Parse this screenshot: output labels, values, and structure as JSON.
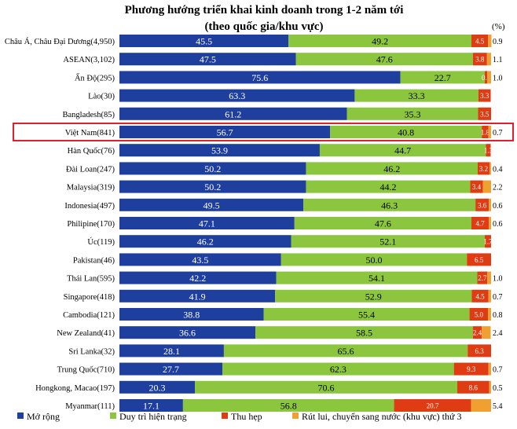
{
  "chart_data": {
    "type": "bar",
    "orientation": "horizontal-stacked-100",
    "title": "Phương hướng triển khai kinh doanh trong 1-2 năm tới",
    "subtitle": "(theo quốc gia/khu vực)",
    "unit_label": "(%)",
    "categories": [
      "Châu Á, Châu Đại Dương(4,950)",
      "ASEAN(3,102)",
      "Ấn Độ(295)",
      "Lào(30)",
      "Bangladesh(85)",
      "Việt Nam(841)",
      "Hàn Quốc(76)",
      "Đài Loan(247)",
      "Malaysia(319)",
      "Indonesia(497)",
      "Philipine(170)",
      "Úc(119)",
      "Pakistan(46)",
      "Thái Lan(595)",
      "Singapore(418)",
      "Cambodia(121)",
      "New Zealand(41)",
      "Sri Lanka(32)",
      "Trung Quốc(710)",
      "Hongkong, Macao(197)",
      "Myanmar(111)"
    ],
    "highlighted_category": "Việt Nam(841)",
    "series": [
      {
        "name": "Mở rộng",
        "color": "#1f3f9e",
        "values": [
          45.5,
          47.5,
          75.6,
          63.3,
          61.2,
          56.7,
          53.9,
          50.2,
          50.2,
          49.5,
          47.1,
          46.2,
          43.5,
          42.2,
          41.9,
          38.8,
          36.6,
          28.1,
          27.7,
          20.3,
          17.1
        ]
      },
      {
        "name": "Duy trì hiện trạng",
        "color": "#8cc63f",
        "values": [
          49.2,
          47.6,
          22.7,
          33.3,
          35.3,
          40.8,
          44.7,
          46.2,
          44.2,
          46.3,
          47.6,
          52.1,
          50.0,
          54.1,
          52.9,
          55.4,
          58.5,
          65.6,
          62.3,
          70.6,
          56.8
        ]
      },
      {
        "name": "Thu hẹp",
        "color": "#e03c14",
        "values": [
          4.5,
          3.8,
          0.7,
          3.3,
          3.5,
          1.8,
          1.3,
          3.2,
          3.4,
          3.6,
          4.7,
          1.7,
          6.5,
          2.7,
          4.5,
          5.0,
          2.4,
          6.3,
          9.3,
          8.6,
          20.7
        ]
      },
      {
        "name": "Rút lui, chuyển sang nước (khu vực) thứ 3",
        "color": "#f0a030",
        "values": [
          0.9,
          1.1,
          1.0,
          0.0,
          0.0,
          0.7,
          0.0,
          0.4,
          2.2,
          0.6,
          0.6,
          0.0,
          0.0,
          1.0,
          0.7,
          0.8,
          2.4,
          0.0,
          0.7,
          0.5,
          5.4
        ]
      }
    ],
    "xlim": [
      0,
      100
    ],
    "grid": false,
    "legend_position": "bottom"
  }
}
